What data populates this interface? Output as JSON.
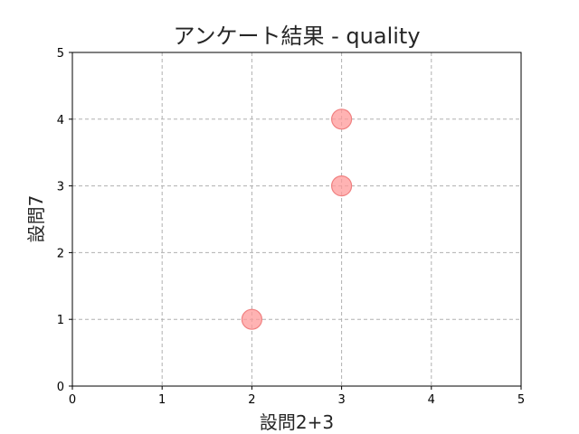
{
  "chart_data": {
    "type": "scatter",
    "title": "アンケート結果 - quality",
    "xlabel": "設問2+3",
    "ylabel": "設問7",
    "xlim": [
      0,
      5
    ],
    "ylim": [
      0,
      5
    ],
    "xticks": [
      "0",
      "1",
      "2",
      "3",
      "4",
      "5"
    ],
    "yticks": [
      "0",
      "1",
      "2",
      "3",
      "4",
      "5"
    ],
    "grid": true,
    "points": [
      {
        "x": 2,
        "y": 1
      },
      {
        "x": 3,
        "y": 3
      },
      {
        "x": 3,
        "y": 4
      }
    ],
    "marker_color": "#ff9999",
    "marker_edge_color": "#f08080"
  }
}
